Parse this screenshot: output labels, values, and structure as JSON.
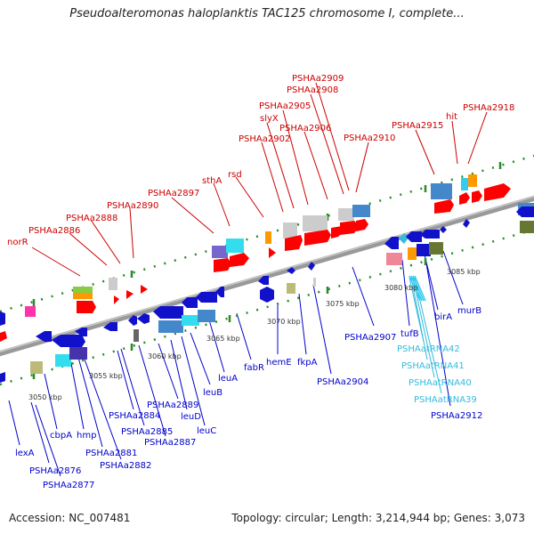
{
  "title": "Pseudoalteromonas haloplanktis TAC125 chromosome I, complete...",
  "footer": {
    "accession": "Accession: NC_007481",
    "summary": "Topology: circular; Length: 3,214,944 bp; Genes: 3,073"
  },
  "colors": {
    "top_label": "#cc0000",
    "bottom_label": "#0000cc",
    "trna_label": "#33bbdd",
    "axis": "#888888",
    "dots": "#2a8a2a"
  },
  "kbp_ticks": [
    "3050 kbp",
    "3055 kbp",
    "3060 kbp",
    "3065 kbp",
    "3070 kbp",
    "3075 kbp",
    "3080 kbp",
    "3085 kbp"
  ],
  "top_labels": [
    "norR",
    "PSHAa2886",
    "PSHAa2888",
    "PSHAa2890",
    "PSHAa2897",
    "sthA",
    "rsd",
    "PSHAa2902",
    "slyX",
    "PSHAa2905",
    "PSHAa2906",
    "PSHAa2908",
    "PSHAa2909",
    "PSHAa2910",
    "PSHAa2915",
    "hit",
    "PSHAa2918"
  ],
  "bottom_labels": [
    "lexA",
    "PSHAa2876",
    "PSHAa2877",
    "cbpA",
    "hmp",
    "PSHAa2881",
    "PSHAa2882",
    "PSHAa2884",
    "PSHAa2885",
    "PSHAa2887",
    "PSHAa2889",
    "leuD",
    "leuC",
    "leuB",
    "leuA",
    "fabR",
    "hemE",
    "fkpA",
    "PSHAa2904",
    "PSHAa2907",
    "tufB",
    "birA",
    "murB",
    "PSHAa2912"
  ],
  "trna_labels": [
    "PSHAatRNA42",
    "PSHAatRNA41",
    "PSHAatRNA40",
    "PSHAatRNA39"
  ]
}
